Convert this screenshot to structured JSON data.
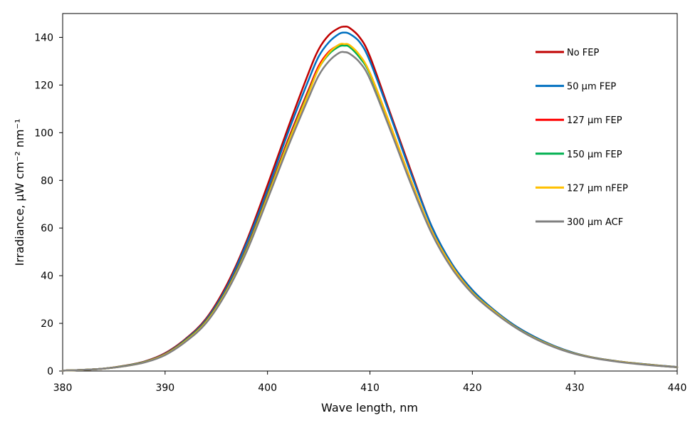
{
  "chart_data": {
    "type": "line",
    "xlabel": "Wave length, nm",
    "ylabel": "Irradiance, μW cm⁻² nm⁻¹",
    "xlim": [
      380,
      440
    ],
    "ylim": [
      0,
      150
    ],
    "xticks": [
      380,
      390,
      400,
      410,
      420,
      430,
      440
    ],
    "yticks": [
      0,
      20,
      40,
      60,
      80,
      100,
      120,
      140
    ],
    "grid": false,
    "legend_position": "top-right",
    "x": [
      380,
      382,
      384,
      386,
      388,
      390,
      392,
      394,
      396,
      398,
      400,
      402,
      404,
      405,
      406,
      407,
      407.5,
      408,
      409,
      410,
      412,
      414,
      416,
      418,
      420,
      422,
      424,
      426,
      428,
      430,
      432,
      434,
      436,
      438,
      440
    ],
    "series": [
      {
        "name": "No FEP",
        "color": "#c00000",
        "values": [
          0.2,
          0.5,
          1.0,
          2.2,
          4.0,
          7.5,
          13.5,
          22,
          36,
          55,
          78,
          102,
          125,
          135,
          141,
          144,
          144.5,
          144,
          140,
          132,
          108,
          84,
          61,
          45,
          34,
          26,
          19.5,
          14.5,
          10.5,
          7.5,
          5.5,
          4.2,
          3.2,
          2.4,
          1.7
        ]
      },
      {
        "name": "50 μm FEP",
        "color": "#0070c0",
        "values": [
          0.2,
          0.5,
          1.0,
          2.1,
          3.9,
          7.3,
          13.2,
          21.5,
          35,
          54,
          76,
          100,
          122,
          132,
          138,
          141.5,
          142,
          141.5,
          138,
          130,
          107,
          83,
          61,
          45,
          34,
          26,
          19.5,
          14.5,
          10.5,
          7.5,
          5.5,
          4.2,
          3.2,
          2.4,
          1.7
        ]
      },
      {
        "name": "127 μm FEP",
        "color": "#ff0000",
        "values": [
          0.2,
          0.5,
          1.0,
          2.1,
          3.8,
          7.1,
          12.9,
          21,
          34,
          52,
          74,
          97,
          118,
          128,
          134,
          136.8,
          137,
          136.5,
          132,
          125,
          103,
          80,
          59,
          44,
          33,
          25.5,
          19,
          14,
          10.2,
          7.3,
          5.4,
          4.1,
          3.1,
          2.3,
          1.6
        ]
      },
      {
        "name": "150 μm FEP",
        "color": "#00b050",
        "values": [
          0.2,
          0.5,
          1.0,
          2.1,
          3.8,
          7.0,
          12.8,
          20.8,
          33.8,
          51.5,
          73.5,
          96,
          117,
          127,
          133,
          136.2,
          136.5,
          136,
          131.5,
          124.5,
          102.5,
          79.5,
          58.5,
          43.5,
          33,
          25.5,
          19,
          14,
          10.2,
          7.3,
          5.4,
          4.1,
          3.1,
          2.3,
          1.6
        ]
      },
      {
        "name": "127 μm nFEP",
        "color": "#ffc000",
        "values": [
          0.2,
          0.5,
          1.0,
          2.0,
          3.7,
          6.9,
          12.6,
          20.5,
          33.5,
          51,
          73,
          95.5,
          116.5,
          127,
          133.5,
          137,
          137.2,
          136.8,
          132.5,
          125,
          103,
          80,
          59,
          44,
          33,
          25.5,
          19,
          14,
          10.2,
          7.3,
          5.4,
          4.1,
          3.1,
          2.3,
          1.6
        ]
      },
      {
        "name": "300 μm ACF",
        "color": "#808080",
        "values": [
          0.2,
          0.5,
          1.0,
          2.0,
          3.6,
          6.7,
          12.3,
          20.1,
          33,
          50.5,
          72,
          94,
          114.5,
          124,
          130,
          133.5,
          133.8,
          133.2,
          129.5,
          122.5,
          101,
          78.5,
          58,
          43,
          32.5,
          25,
          18.8,
          13.8,
          10,
          7.2,
          5.3,
          4.0,
          3.0,
          2.2,
          1.6
        ]
      }
    ]
  }
}
